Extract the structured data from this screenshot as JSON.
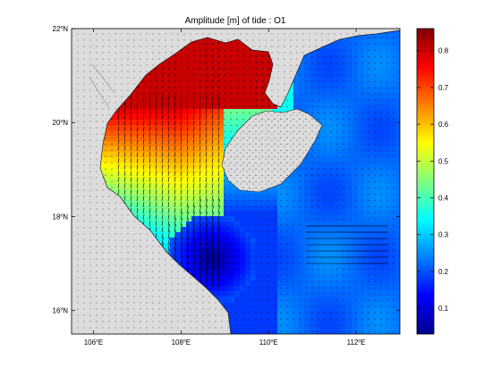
{
  "chart_data": {
    "type": "heatmap",
    "title": "Amplitude [m] of tide : O1",
    "xlabel": "",
    "ylabel": "",
    "xlim": [
      105.5,
      113.0
    ],
    "ylim": [
      15.5,
      22.0
    ],
    "x_ticks": [
      {
        "value": 106,
        "deg": "106",
        "hemi": "E"
      },
      {
        "value": 108,
        "deg": "108",
        "hemi": "E"
      },
      {
        "value": 110,
        "deg": "110",
        "hemi": "E"
      },
      {
        "value": 112,
        "deg": "112",
        "hemi": "E"
      }
    ],
    "y_ticks": [
      {
        "value": 16,
        "deg": "16",
        "hemi": "N"
      },
      {
        "value": 18,
        "deg": "18",
        "hemi": "N"
      },
      {
        "value": 20,
        "deg": "20",
        "hemi": "N"
      },
      {
        "value": 22,
        "deg": "22",
        "hemi": "N"
      }
    ],
    "colorbar": {
      "colormap": "jet",
      "range": [
        0.03,
        0.86
      ],
      "ticks": [
        "0.1",
        "0.2",
        "0.3",
        "0.4",
        "0.5",
        "0.6",
        "0.7",
        "0.8"
      ]
    },
    "land_color": "#dcdcdc",
    "grid": false,
    "overlay": "current velocity arrows"
  }
}
